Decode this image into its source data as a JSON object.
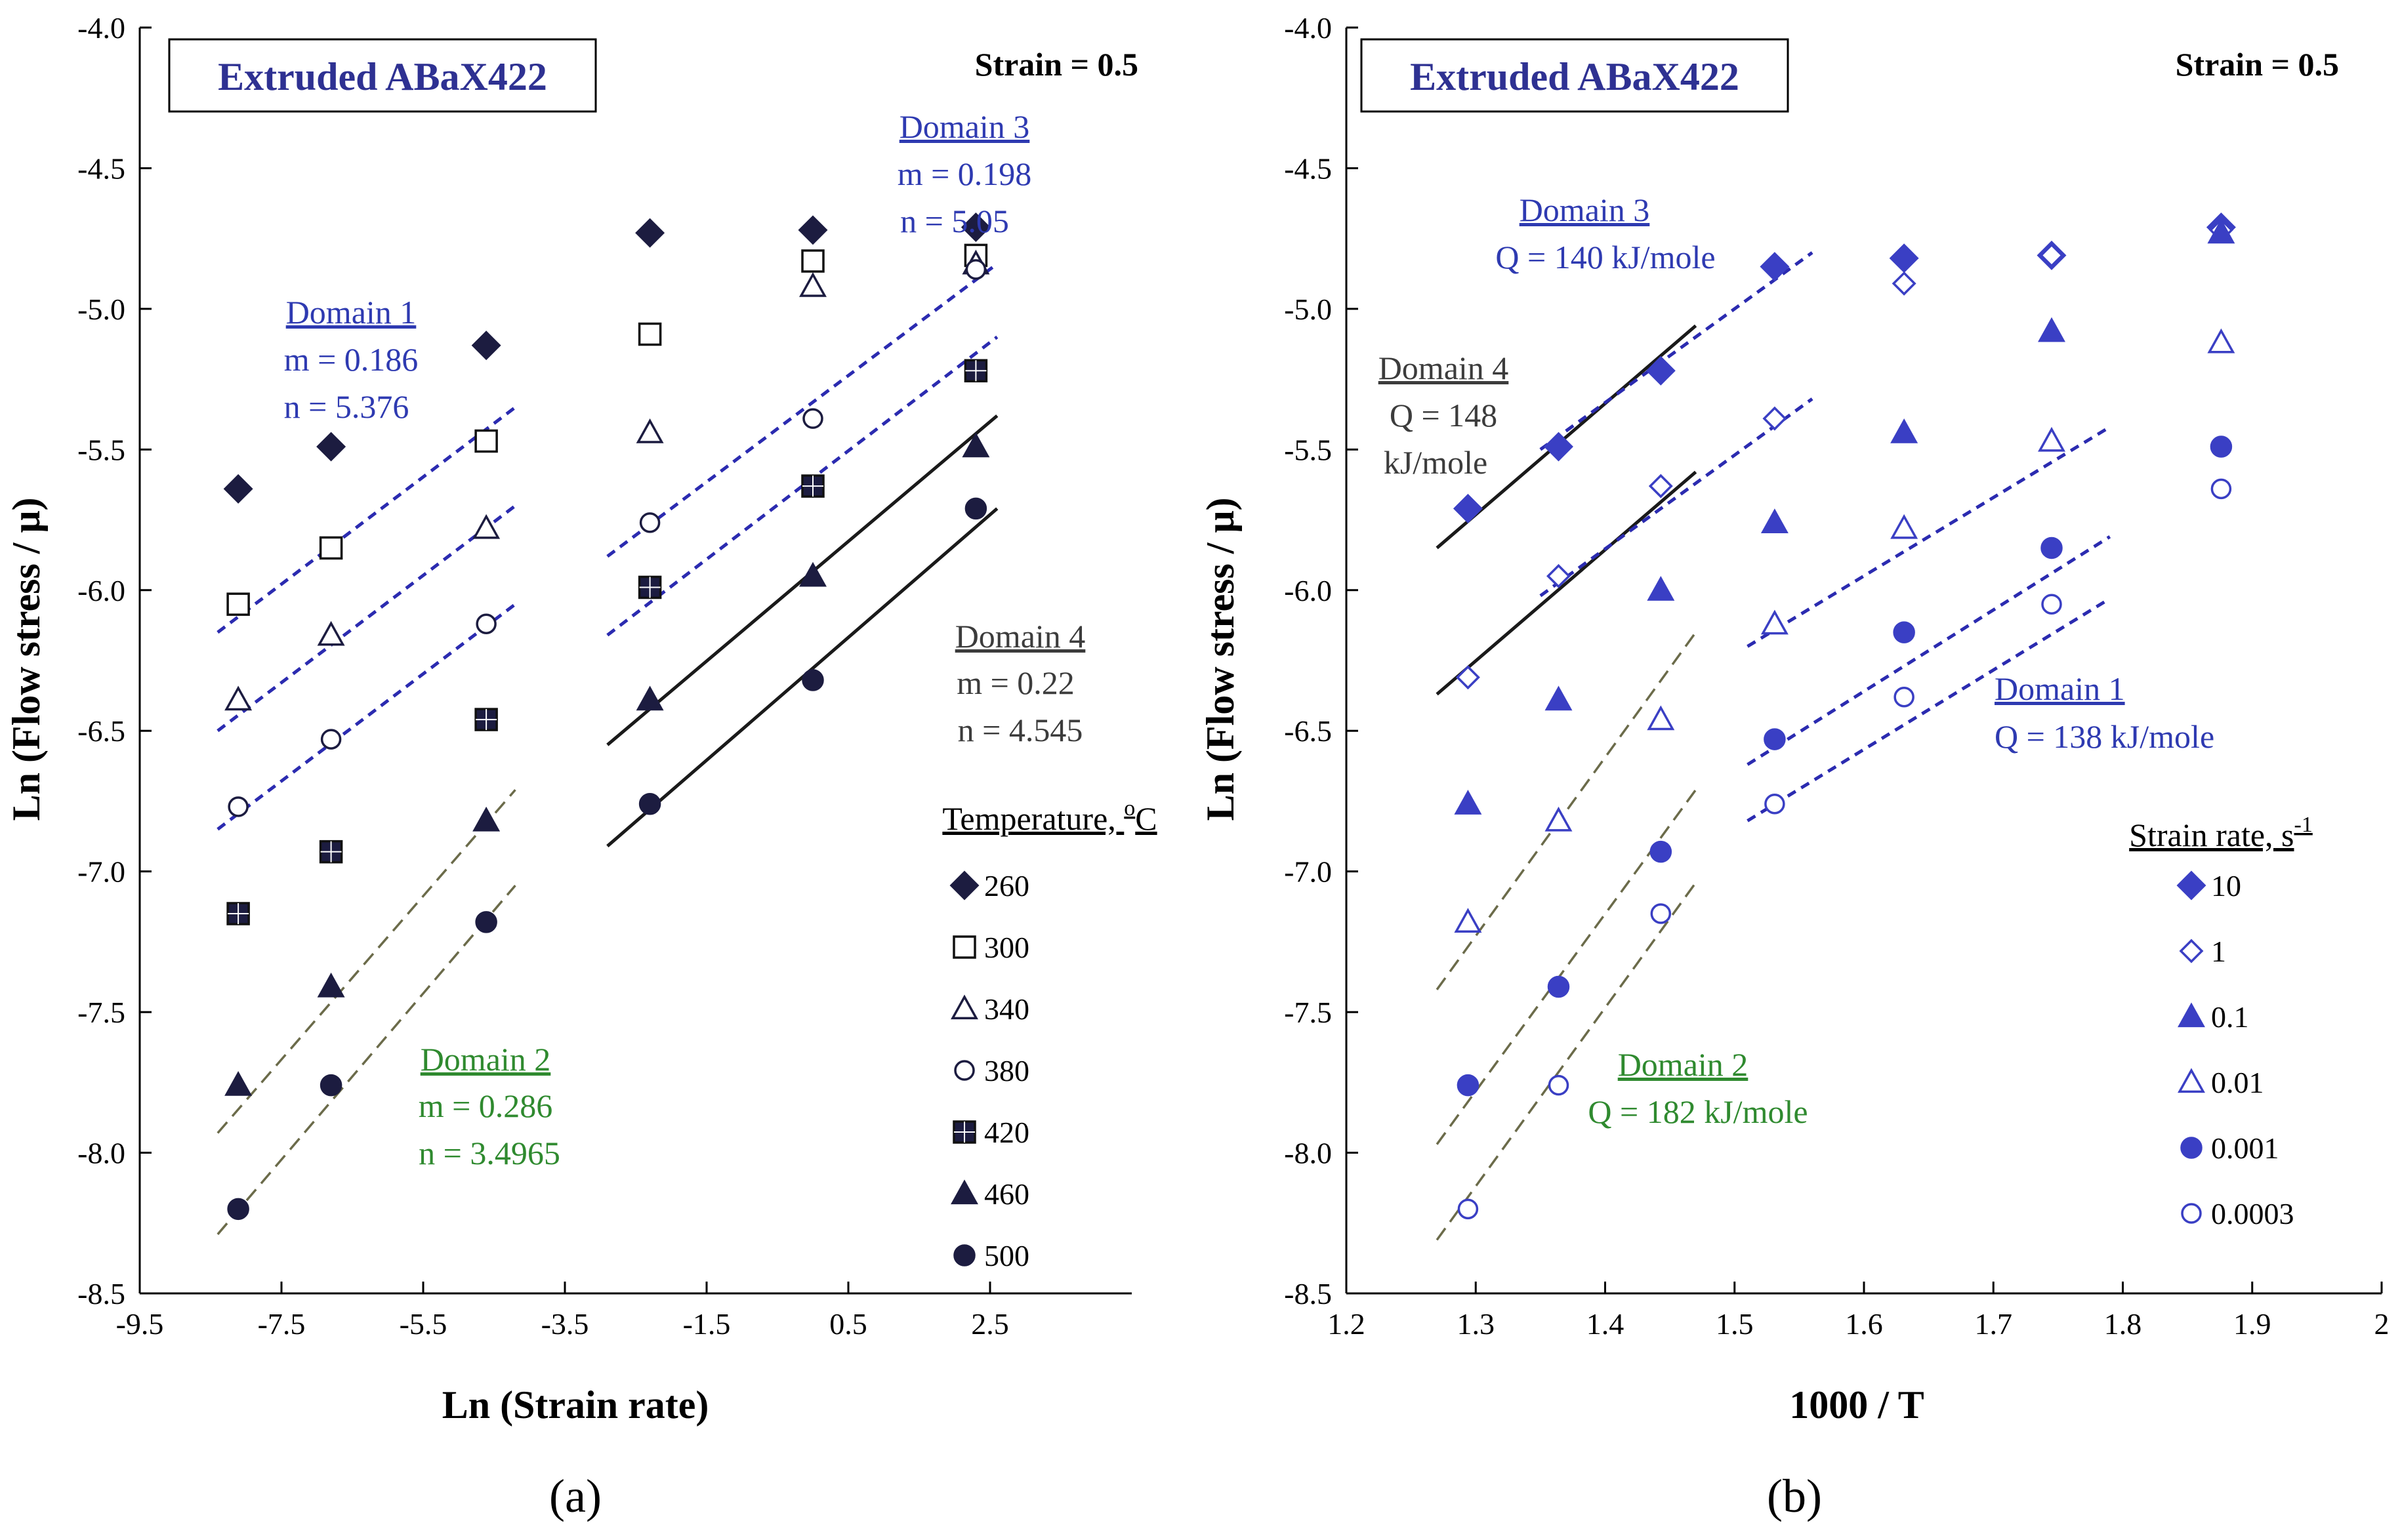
{
  "chart_data": [
    {
      "panel_id": "a",
      "type": "scatter",
      "panel_label": "(a)",
      "title": "Extruded ABaX422",
      "strain_label": "Strain = 0.5",
      "xlabel": "Ln (Strain rate)",
      "ylabel": "Ln (Flow stress / μ)",
      "xlim": [
        -9.5,
        4.5
      ],
      "ylim": [
        -8.5,
        -4.0
      ],
      "xticks": [
        -9.5,
        -7.5,
        -5.5,
        -3.5,
        -1.5,
        0.5,
        2.5
      ],
      "xtick_labels": [
        "-9.5",
        "-7.5",
        "-5.5",
        "-3.5",
        "-1.5",
        "0.5",
        "2.5"
      ],
      "yticks": [
        -4.0,
        -4.5,
        -5.0,
        -5.5,
        -6.0,
        -6.5,
        -7.0,
        -7.5,
        -8.0,
        -8.5
      ],
      "ytick_labels": [
        "-4.0",
        "-4.5",
        "-5.0",
        "-5.5",
        "-6.0",
        "-6.5",
        "-7.0",
        "-7.5",
        "-8.0",
        "-8.5"
      ],
      "grid": false,
      "legend_title": "Temperature, °C",
      "legend_title_text": "Temperature, ",
      "legend_title_sup": "o",
      "legend_title_unit": "C",
      "legend_position": "bottom-right",
      "x": [
        -8.11,
        -6.8,
        -4.61,
        -2.3,
        0.0,
        2.3
      ],
      "series": [
        {
          "name": "260",
          "marker": "diamond-filled",
          "values": [
            -5.64,
            -5.49,
            -5.13,
            -4.73,
            -4.72,
            -4.71
          ]
        },
        {
          "name": "300",
          "marker": "square-open",
          "values": [
            -6.05,
            -5.85,
            -5.47,
            -5.09,
            -4.83,
            -4.81
          ]
        },
        {
          "name": "340",
          "marker": "triangle-open",
          "values": [
            -6.39,
            -6.16,
            -5.78,
            -5.44,
            -4.92,
            -4.84
          ]
        },
        {
          "name": "380",
          "marker": "circle-open",
          "values": [
            -6.77,
            -6.53,
            -6.12,
            -5.76,
            -5.39,
            -4.86
          ]
        },
        {
          "name": "420",
          "marker": "square-filled",
          "values": [
            -7.15,
            -6.93,
            -6.46,
            -5.99,
            -5.63,
            -5.22
          ]
        },
        {
          "name": "460",
          "marker": "triangle-filled",
          "values": [
            -7.76,
            -7.41,
            -6.82,
            -6.39,
            -5.95,
            -5.49
          ]
        },
        {
          "name": "500",
          "marker": "circle-filled",
          "values": [
            -8.2,
            -7.76,
            -7.18,
            -6.76,
            -6.32,
            -5.71
          ]
        }
      ],
      "fit_lines": [
        {
          "style": "blue-dash",
          "x": [
            -8.4,
            -4.2
          ],
          "y": [
            -6.15,
            -5.35
          ]
        },
        {
          "style": "blue-dash",
          "x": [
            -8.4,
            -4.2
          ],
          "y": [
            -6.5,
            -5.7
          ]
        },
        {
          "style": "blue-dash",
          "x": [
            -8.4,
            -4.2
          ],
          "y": [
            -6.85,
            -6.05
          ]
        },
        {
          "style": "green-dash",
          "x": [
            -8.4,
            -4.2
          ],
          "y": [
            -7.93,
            -6.71
          ]
        },
        {
          "style": "green-dash",
          "x": [
            -8.4,
            -4.2
          ],
          "y": [
            -8.29,
            -7.05
          ]
        },
        {
          "style": "blue-dash",
          "x": [
            -2.9,
            2.6
          ],
          "y": [
            -5.88,
            -4.84
          ]
        },
        {
          "style": "blue-dash",
          "x": [
            -2.9,
            2.6
          ],
          "y": [
            -6.16,
            -5.1
          ]
        },
        {
          "style": "black-solid",
          "x": [
            -2.9,
            2.6
          ],
          "y": [
            -6.55,
            -5.38
          ]
        },
        {
          "style": "black-solid",
          "x": [
            -2.9,
            2.6
          ],
          "y": [
            -6.91,
            -5.71
          ]
        }
      ],
      "annotations": [
        {
          "color": "blue",
          "heading": "Domain 1",
          "lines": [
            "m = 0.186",
            "n = 5.376"
          ]
        },
        {
          "color": "green",
          "heading": "Domain 2",
          "lines": [
            "m = 0.286",
            "n = 3.4965"
          ]
        },
        {
          "color": "blue",
          "heading": "Domain 3",
          "lines": [
            "m = 0.198",
            "n = 5.05"
          ]
        },
        {
          "color": "gray",
          "heading": "Domain 4",
          "lines": [
            "m = 0.22",
            "n = 4.545"
          ]
        }
      ]
    },
    {
      "panel_id": "b",
      "type": "scatter",
      "panel_label": "(b)",
      "title": "Extruded ABaX422",
      "strain_label": "Strain = 0.5",
      "xlabel": "1000 / T",
      "ylabel": "Ln (Flow stress / μ)",
      "xlim": [
        1.2,
        2.0
      ],
      "ylim": [
        -8.5,
        -4.0
      ],
      "xticks": [
        1.2,
        1.3,
        1.4,
        1.5,
        1.6,
        1.7,
        1.8,
        1.9,
        2.0
      ],
      "xtick_labels": [
        "1.2",
        "1.3",
        "1.4",
        "1.5",
        "1.6",
        "1.7",
        "1.8",
        "1.9",
        "2"
      ],
      "yticks": [
        -4.0,
        -4.5,
        -5.0,
        -5.5,
        -6.0,
        -6.5,
        -7.0,
        -7.5,
        -8.0,
        -8.5
      ],
      "ytick_labels": [
        "-4.0",
        "-4.5",
        "-5.0",
        "-5.5",
        "-6.0",
        "-6.5",
        "-7.0",
        "-7.5",
        "-8.0",
        "-8.5"
      ],
      "grid": false,
      "legend_title": "Strain rate, s⁻¹",
      "legend_title_text": "Strain rate, s",
      "legend_title_sup": "-1",
      "legend_position": "bottom-right",
      "x": [
        1.294,
        1.364,
        1.443,
        1.531,
        1.631,
        1.745,
        1.876
      ],
      "series": [
        {
          "name": "10",
          "marker": "diamond-filled",
          "values": [
            -5.71,
            -5.49,
            -5.22,
            -4.85,
            -4.82,
            -4.81,
            -4.71
          ]
        },
        {
          "name": "1",
          "marker": "diamond-open",
          "values": [
            -6.31,
            -5.95,
            -5.63,
            -5.39,
            -4.91,
            -4.81,
            -4.72
          ]
        },
        {
          "name": "0.1",
          "marker": "triangle-filled",
          "values": [
            -6.76,
            -6.39,
            -6.0,
            -5.76,
            -5.44,
            -5.08,
            -4.73
          ]
        },
        {
          "name": "0.01",
          "marker": "triangle-open",
          "values": [
            -7.18,
            -6.82,
            -6.46,
            -6.12,
            -5.78,
            -5.47,
            -5.12
          ]
        },
        {
          "name": "0.001",
          "marker": "circle-filled",
          "values": [
            -7.76,
            -7.41,
            -6.93,
            -6.53,
            -6.15,
            -5.85,
            -5.49
          ]
        },
        {
          "name": "0.0003",
          "marker": "circle-open",
          "values": [
            -8.2,
            -7.76,
            -7.15,
            -6.76,
            -6.38,
            -6.05,
            -5.64
          ]
        }
      ],
      "fit_lines": [
        {
          "style": "black-solid",
          "x": [
            1.27,
            1.47
          ],
          "y": [
            -5.85,
            -5.06
          ]
        },
        {
          "style": "black-solid",
          "x": [
            1.27,
            1.47
          ],
          "y": [
            -6.37,
            -5.58
          ]
        },
        {
          "style": "blue-dash",
          "x": [
            1.35,
            1.56
          ],
          "y": [
            -5.5,
            -4.8
          ]
        },
        {
          "style": "blue-dash",
          "x": [
            1.35,
            1.56
          ],
          "y": [
            -6.02,
            -5.32
          ]
        },
        {
          "style": "green-dash",
          "x": [
            1.27,
            1.47
          ],
          "y": [
            -7.42,
            -6.15
          ]
        },
        {
          "style": "green-dash",
          "x": [
            1.27,
            1.47
          ],
          "y": [
            -7.97,
            -6.71
          ]
        },
        {
          "style": "green-dash",
          "x": [
            1.27,
            1.47
          ],
          "y": [
            -8.31,
            -7.04
          ]
        },
        {
          "style": "blue-dash",
          "x": [
            1.51,
            1.79
          ],
          "y": [
            -6.2,
            -5.42
          ]
        },
        {
          "style": "blue-dash",
          "x": [
            1.51,
            1.79
          ],
          "y": [
            -6.62,
            -5.81
          ]
        },
        {
          "style": "blue-dash",
          "x": [
            1.51,
            1.79
          ],
          "y": [
            -6.82,
            -6.03
          ]
        }
      ],
      "annotations": [
        {
          "color": "blue",
          "heading": "Domain 3",
          "lines": [
            "Q = 140 kJ/mole"
          ]
        },
        {
          "color": "gray",
          "heading": "Domain 4",
          "lines": [
            "Q = 148",
            "kJ/mole"
          ]
        },
        {
          "color": "blue",
          "heading": "Domain 1",
          "lines": [
            "Q = 138 kJ/mole"
          ]
        },
        {
          "color": "green",
          "heading": "Domain 2",
          "lines": [
            "Q = 182 kJ/mole"
          ]
        }
      ]
    }
  ],
  "colors": {
    "axis": "#000000",
    "navy_text": "#2e3192",
    "blue_text": "#2e3ab1",
    "green_text": "#2f8a2f",
    "gray_text": "#3c3c3c",
    "marker_dark": "#1c1c40",
    "marker_blue": "#3a3fc4",
    "blue_dash": "#2b2bb0",
    "green_dash": "#6b6b4a",
    "black_line": "#1a1a1a"
  }
}
